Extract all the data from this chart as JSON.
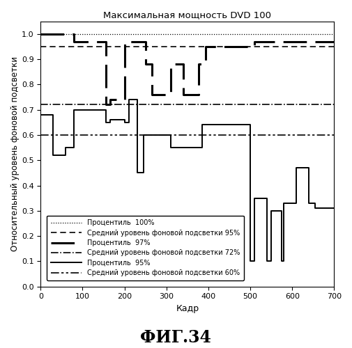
{
  "title": "Максимальная мощность DVD 100",
  "xlabel": "Кадр",
  "ylabel": "Относительный уровень фоновой подсветки",
  "fig_label": "ФИГ.34",
  "xlim": [
    0,
    700
  ],
  "ylim": [
    0,
    1.05
  ],
  "xticks": [
    0,
    100,
    200,
    300,
    400,
    500,
    600,
    700
  ],
  "yticks": [
    0,
    0.1,
    0.2,
    0.3,
    0.4,
    0.5,
    0.6,
    0.7,
    0.8,
    0.9,
    1.0
  ],
  "hline_p100_y": 1.0,
  "hline_avg95_y": 0.95,
  "hline_avg72_y": 0.72,
  "hline_avg60_y": 0.6,
  "p97_x": [
    0,
    80,
    80,
    155,
    155,
    165,
    165,
    200,
    200,
    250,
    250,
    265,
    265,
    310,
    310,
    340,
    340,
    377,
    377,
    393,
    393,
    500,
    500,
    510,
    510,
    700
  ],
  "p97_y": [
    1.0,
    1.0,
    0.97,
    0.97,
    0.72,
    0.72,
    0.74,
    0.74,
    0.97,
    0.97,
    0.88,
    0.88,
    0.76,
    0.76,
    0.88,
    0.88,
    0.76,
    0.76,
    0.88,
    0.88,
    0.95,
    0.95,
    0.95,
    0.95,
    0.97,
    0.97
  ],
  "p95_x": [
    0,
    30,
    30,
    60,
    60,
    80,
    80,
    155,
    155,
    165,
    165,
    200,
    200,
    210,
    210,
    230,
    230,
    245,
    245,
    310,
    310,
    385,
    385,
    500,
    500,
    510,
    510,
    540,
    540,
    550,
    550,
    575,
    575,
    580,
    580,
    610,
    610,
    640,
    640,
    655,
    655,
    700
  ],
  "p95_y": [
    0.68,
    0.68,
    0.52,
    0.52,
    0.55,
    0.55,
    0.7,
    0.7,
    0.65,
    0.65,
    0.66,
    0.66,
    0.65,
    0.65,
    0.74,
    0.74,
    0.45,
    0.45,
    0.6,
    0.6,
    0.55,
    0.55,
    0.64,
    0.64,
    0.1,
    0.1,
    0.35,
    0.35,
    0.1,
    0.1,
    0.3,
    0.3,
    0.1,
    0.1,
    0.33,
    0.33,
    0.47,
    0.47,
    0.33,
    0.33,
    0.31,
    0.31
  ],
  "legend_labels": [
    "Процентиль  100%",
    "Средний уровень фоновой подсветки 95%",
    "Процентиль  97%",
    "Средний уровень фоновой подсветки 72%",
    "Процентиль  95%",
    "Средний уровень фоновой подсветки 60%"
  ]
}
